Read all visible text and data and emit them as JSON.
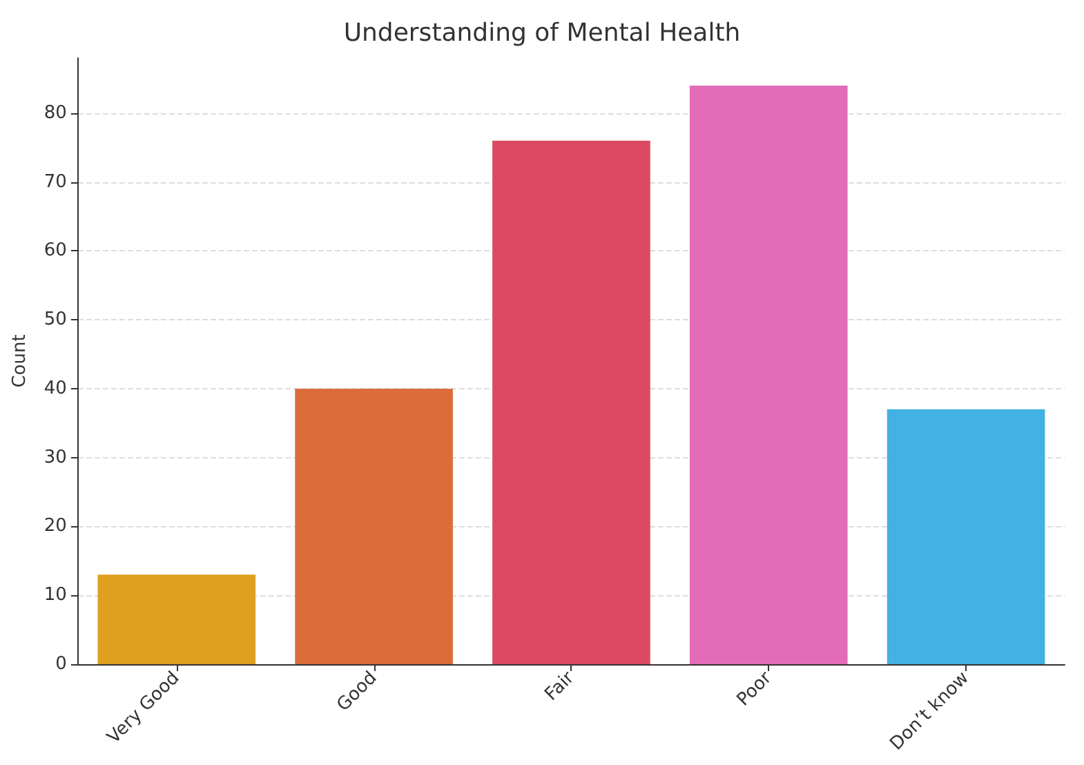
{
  "chart_data": {
    "type": "bar",
    "title": "Understanding of Mental Health",
    "ylabel": "Count",
    "categories": [
      "Very Good",
      "Good",
      "Fair",
      "Poor",
      "Don’t know"
    ],
    "values": [
      13,
      40,
      76,
      84,
      37
    ],
    "colors": [
      "#dfa01f",
      "#db6d3a",
      "#db4a62",
      "#e36cb9",
      "#43b1e1"
    ],
    "ylim": [
      0,
      88
    ],
    "yticks": [
      0,
      10,
      20,
      30,
      40,
      50,
      60,
      70,
      80
    ],
    "grid": "y"
  }
}
